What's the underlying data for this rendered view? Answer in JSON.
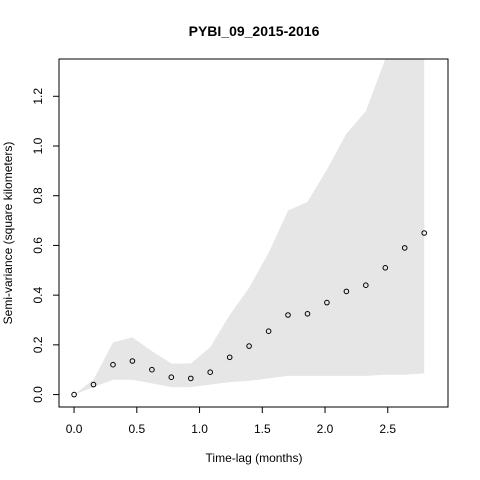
{
  "chart_data": {
    "type": "scatter",
    "title": "PYBI_09_2015-2016",
    "xlabel": "Time-lag (months)",
    "ylabel": "Semi-variance (square kilometers)",
    "xlim": [
      -0.12,
      2.98
    ],
    "ylim": [
      -0.05,
      1.35
    ],
    "x_ticks": [
      0.0,
      0.5,
      1.0,
      1.5,
      2.0,
      2.5
    ],
    "x_tick_labels": [
      "0.0",
      "0.5",
      "1.0",
      "1.5",
      "2.0",
      "2.5"
    ],
    "y_ticks": [
      0.0,
      0.2,
      0.4,
      0.6,
      0.8,
      1.0,
      1.2
    ],
    "y_tick_labels": [
      "0.0",
      "0.2",
      "0.4",
      "0.6",
      "0.8",
      "1.0",
      "1.2"
    ],
    "grid": false,
    "band_color": "#e6e6e6",
    "points": {
      "x": [
        0.0,
        0.155,
        0.31,
        0.465,
        0.62,
        0.775,
        0.93,
        1.085,
        1.24,
        1.395,
        1.55,
        1.705,
        1.86,
        2.015,
        2.17,
        2.325,
        2.48,
        2.635,
        2.79
      ],
      "y": [
        0.0,
        0.04,
        0.12,
        0.135,
        0.1,
        0.07,
        0.065,
        0.09,
        0.15,
        0.195,
        0.255,
        0.32,
        0.325,
        0.37,
        0.415,
        0.44,
        0.51,
        0.59,
        0.65
      ]
    },
    "envelope": {
      "x": [
        0.0,
        0.155,
        0.31,
        0.465,
        0.62,
        0.775,
        0.93,
        1.085,
        1.24,
        1.395,
        1.55,
        1.705,
        1.86,
        2.015,
        2.17,
        2.325,
        2.48,
        2.635,
        2.79
      ],
      "upper": [
        0.0,
        0.06,
        0.21,
        0.23,
        0.175,
        0.125,
        0.125,
        0.19,
        0.32,
        0.43,
        0.57,
        0.74,
        0.775,
        0.905,
        1.05,
        1.14,
        1.4,
        1.4,
        1.4
      ],
      "lower": [
        0.0,
        0.03,
        0.06,
        0.06,
        0.045,
        0.03,
        0.03,
        0.04,
        0.05,
        0.055,
        0.065,
        0.075,
        0.075,
        0.075,
        0.075,
        0.075,
        0.08,
        0.08,
        0.085
      ]
    }
  }
}
